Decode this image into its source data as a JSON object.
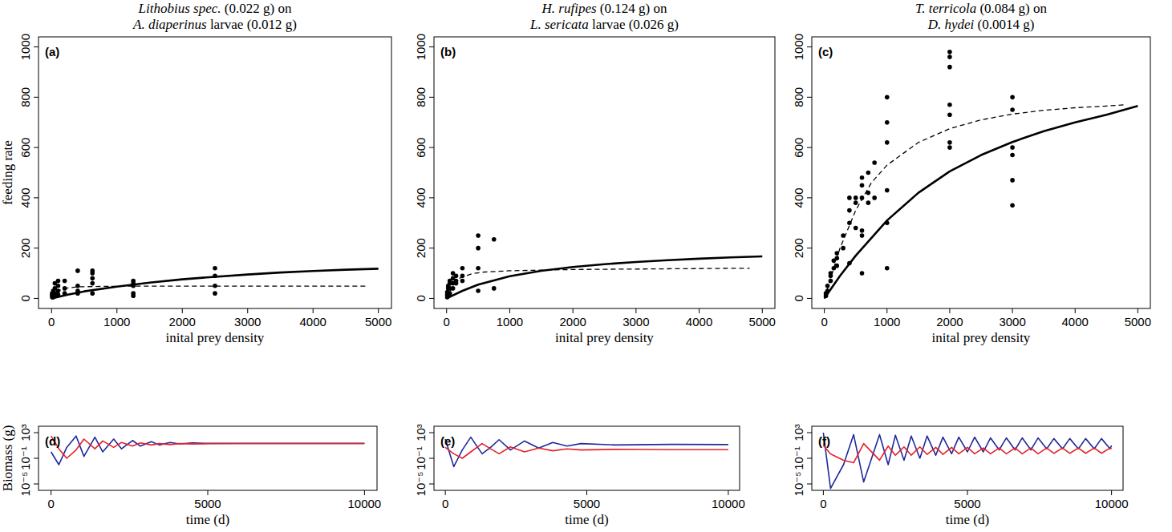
{
  "chart_data": [
    {
      "type": "scatter",
      "title": "Lithobius spec. (0.022 g) on A. diaperinus larvae (0.012 g)",
      "xlabel": "inital prey density",
      "ylabel": "feeding rate",
      "annotations": [
        "(a)"
      ],
      "xlim": [
        -200,
        5200
      ],
      "ylim": [
        -40,
        1040
      ],
      "xticks": [
        0,
        1000,
        2000,
        3000,
        4000,
        5000
      ],
      "yticks": [
        0,
        200,
        400,
        600,
        800,
        1000
      ],
      "grid": false,
      "series": [
        {
          "type": "scatter",
          "marker": "circle",
          "color": "#000000",
          "x": [
            10,
            10,
            10,
            10,
            25,
            25,
            25,
            25,
            50,
            50,
            50,
            50,
            100,
            100,
            100,
            100,
            200,
            200,
            200,
            400,
            400,
            400,
            400,
            625,
            625,
            625,
            625,
            625,
            1250,
            1250,
            1250,
            1250,
            1250,
            2500,
            2500,
            2500,
            2500
          ],
          "values": [
            5,
            10,
            15,
            20,
            5,
            10,
            20,
            30,
            10,
            20,
            40,
            60,
            15,
            30,
            50,
            70,
            20,
            40,
            70,
            20,
            30,
            50,
            110,
            20,
            60,
            80,
            100,
            110,
            10,
            20,
            50,
            60,
            70,
            20,
            50,
            90,
            120
          ]
        },
        {
          "type": "line",
          "line_style": "solid",
          "color": "#000000",
          "x": [
            0,
            250,
            500,
            1000,
            1500,
            2000,
            2500,
            3000,
            3500,
            4000,
            4500,
            5000
          ],
          "values": [
            0,
            15,
            28,
            47,
            63,
            76,
            86,
            95,
            103,
            109,
            114,
            118
          ]
        },
        {
          "type": "line",
          "line_style": "dashed",
          "color": "#000000",
          "x": [
            0,
            100,
            200,
            400,
            800,
            1500,
            4800
          ],
          "values": [
            0,
            30,
            40,
            46,
            48,
            49,
            49
          ]
        }
      ]
    },
    {
      "type": "scatter",
      "title": "H. rufipes (0.124 g) on L. sericata larvae (0.026 g)",
      "xlabel": "inital prey density",
      "annotations": [
        "(b)"
      ],
      "xlim": [
        -200,
        5200
      ],
      "ylim": [
        -40,
        1040
      ],
      "xticks": [
        0,
        1000,
        2000,
        3000,
        4000,
        5000
      ],
      "yticks": [
        0,
        200,
        400,
        600,
        800,
        1000
      ],
      "grid": false,
      "series": [
        {
          "type": "scatter",
          "marker": "circle",
          "color": "#000000",
          "x": [
            10,
            10,
            10,
            25,
            25,
            25,
            25,
            50,
            50,
            50,
            50,
            100,
            100,
            100,
            100,
            150,
            150,
            150,
            250,
            250,
            250,
            500,
            500,
            500,
            500,
            750,
            750
          ],
          "values": [
            5,
            15,
            25,
            10,
            20,
            40,
            50,
            20,
            40,
            60,
            70,
            40,
            60,
            80,
            100,
            60,
            70,
            90,
            70,
            90,
            120,
            30,
            120,
            200,
            250,
            40,
            235
          ]
        },
        {
          "type": "line",
          "line_style": "solid",
          "color": "#000000",
          "x": [
            0,
            250,
            500,
            1000,
            1500,
            2000,
            2500,
            3000,
            3500,
            4000,
            4500,
            5000
          ],
          "values": [
            0,
            30,
            55,
            88,
            110,
            125,
            136,
            145,
            152,
            158,
            163,
            167
          ]
        },
        {
          "type": "line",
          "line_style": "dashed",
          "color": "#000000",
          "x": [
            0,
            100,
            200,
            400,
            600,
            1000,
            2000,
            4800
          ],
          "values": [
            0,
            50,
            80,
            98,
            105,
            110,
            115,
            120
          ]
        }
      ]
    },
    {
      "type": "scatter",
      "title": "T. terricola (0.084 g) on D. hydei (0.0014  g)",
      "xlabel": "inital prey density",
      "annotations": [
        "(c)"
      ],
      "xlim": [
        -200,
        5200
      ],
      "ylim": [
        -40,
        1040
      ],
      "xticks": [
        0,
        1000,
        2000,
        3000,
        4000,
        5000
      ],
      "yticks": [
        0,
        200,
        400,
        600,
        800,
        1000
      ],
      "grid": false,
      "series": [
        {
          "type": "scatter",
          "marker": "circle",
          "color": "#000000",
          "x": [
            25,
            25,
            50,
            50,
            100,
            100,
            100,
            150,
            150,
            200,
            200,
            200,
            300,
            300,
            400,
            400,
            400,
            400,
            500,
            500,
            500,
            600,
            600,
            600,
            600,
            600,
            600,
            700,
            700,
            700,
            800,
            800,
            1000,
            1000,
            1000,
            1000,
            1000,
            1000,
            2000,
            2000,
            2000,
            2000,
            2000,
            2000,
            2000,
            3000,
            3000,
            3000,
            3000,
            3000,
            3000
          ],
          "values": [
            10,
            20,
            30,
            50,
            70,
            90,
            100,
            120,
            150,
            130,
            160,
            180,
            200,
            250,
            140,
            300,
            350,
            400,
            280,
            380,
            400,
            100,
            250,
            270,
            400,
            450,
            480,
            380,
            420,
            500,
            400,
            540,
            120,
            300,
            430,
            620,
            700,
            800,
            600,
            620,
            730,
            770,
            920,
            960,
            980,
            370,
            470,
            570,
            600,
            750,
            800
          ]
        },
        {
          "type": "line",
          "line_style": "solid",
          "color": "#000000",
          "x": [
            0,
            250,
            500,
            1000,
            1500,
            2000,
            2500,
            3000,
            3500,
            4000,
            4500,
            5000
          ],
          "values": [
            0,
            90,
            170,
            310,
            420,
            505,
            570,
            622,
            665,
            700,
            730,
            765
          ]
        },
        {
          "type": "line",
          "line_style": "dashed",
          "color": "#000000",
          "x": [
            0,
            250,
            500,
            750,
            1000,
            1500,
            2000,
            2500,
            3000,
            3500,
            4000,
            4500,
            4800
          ],
          "values": [
            0,
            200,
            350,
            460,
            530,
            620,
            675,
            710,
            733,
            748,
            758,
            765,
            770
          ]
        }
      ]
    },
    {
      "type": "line",
      "log": "y",
      "xlabel": "time (d)",
      "ylabel": "Biomass (g)",
      "annotations": [
        "(d)"
      ],
      "xlim": [
        -400,
        10400
      ],
      "ylim": [
        1e-06,
        10000
      ],
      "xticks": [
        0,
        5000,
        10000
      ],
      "yticks": [
        {
          "value": 1000,
          "label": "10³"
        },
        {
          "value": 0.1,
          "label": "10⁻¹"
        },
        {
          "value": 1e-05,
          "label": "10⁻⁵"
        }
      ],
      "grid": false,
      "x": [
        0,
        250,
        500,
        800,
        1050,
        1400,
        1650,
        2000,
        2250,
        2600,
        2850,
        3200,
        3450,
        3800,
        4100,
        4500,
        5000,
        6000,
        8000,
        10000
      ],
      "series": [
        {
          "color": "#1f2a9a",
          "values": [
            1,
            0.01,
            5,
            300,
            0.2,
            200,
            1,
            100,
            3,
            60,
            8,
            40,
            12,
            30,
            18,
            25,
            21,
            22,
            22,
            22
          ]
        },
        {
          "color": "#e8202a",
          "values": [
            300,
            3,
            0.1,
            2,
            100,
            3,
            50,
            5,
            30,
            8,
            25,
            12,
            20,
            14,
            20,
            17,
            19,
            19,
            19,
            19
          ]
        }
      ]
    },
    {
      "type": "line",
      "log": "y",
      "xlabel": "time (d)",
      "annotations": [
        "(e)"
      ],
      "xlim": [
        -400,
        10400
      ],
      "ylim": [
        1e-06,
        10000
      ],
      "xticks": [
        0,
        5000,
        10000
      ],
      "yticks": [
        {
          "value": 1000,
          "label": "10³"
        },
        {
          "value": 0.1,
          "label": "10⁻¹"
        },
        {
          "value": 1e-05,
          "label": "10⁻⁵"
        }
      ],
      "grid": false,
      "x": [
        0,
        300,
        600,
        900,
        1300,
        1600,
        1900,
        2300,
        2800,
        3300,
        3800,
        4300,
        4800,
        6000,
        8000,
        10000
      ],
      "series": [
        {
          "color": "#1f2a9a",
          "values": [
            100,
            0.005,
            2,
            200,
            0.5,
            5,
            80,
            2,
            50,
            4,
            30,
            8,
            20,
            12,
            15,
            14
          ]
        },
        {
          "color": "#e8202a",
          "values": [
            5,
            0.5,
            0.1,
            1,
            20,
            3,
            0.5,
            6,
            1,
            4,
            1.5,
            3,
            2,
            2.5,
            2.2,
            2.2
          ]
        }
      ]
    },
    {
      "type": "line",
      "log": "y",
      "xlabel": "time (d)",
      "annotations": [
        "(f)"
      ],
      "xlim": [
        -400,
        10400
      ],
      "ylim": [
        1e-06,
        10000
      ],
      "xticks": [
        0,
        5000,
        10000
      ],
      "yticks": [
        {
          "value": 1000,
          "label": "10³"
        },
        {
          "value": 0.1,
          "label": "10⁻¹"
        },
        {
          "value": 1e-05,
          "label": "10⁻⁵"
        }
      ],
      "grid": false,
      "x": [
        0,
        250,
        700,
        1050,
        1400,
        1950,
        2250,
        2500,
        2800,
        3050,
        3350,
        3600,
        3900,
        4150,
        4450,
        4700,
        5000,
        5250,
        5550,
        5800,
        6100,
        6350,
        6650,
        6900,
        7200,
        7450,
        7750,
        8000,
        8300,
        8550,
        8850,
        9100,
        9400,
        9650,
        9950,
        10000
      ],
      "series": [
        {
          "color": "#1f2a9a",
          "values": [
            1000,
            2e-06,
            0.01,
            500,
            2e-05,
            500,
            0.01,
            400,
            0.05,
            300,
            0.1,
            300,
            0.3,
            200,
            0.5,
            200,
            1,
            200,
            1,
            150,
            2,
            150,
            2,
            150,
            2,
            150,
            3,
            120,
            3,
            120,
            3,
            120,
            3,
            120,
            3,
            10
          ]
        },
        {
          "color": "#e8202a",
          "values": [
            10,
            0.5,
            0.05,
            0.02,
            20,
            0.05,
            8,
            0.3,
            6,
            0.3,
            6,
            0.4,
            5,
            0.4,
            5,
            0.5,
            5,
            0.5,
            4,
            0.5,
            4,
            0.5,
            4,
            0.5,
            4,
            0.5,
            4,
            0.6,
            4,
            0.6,
            4,
            0.6,
            4,
            0.6,
            4,
            3
          ]
        }
      ]
    }
  ]
}
